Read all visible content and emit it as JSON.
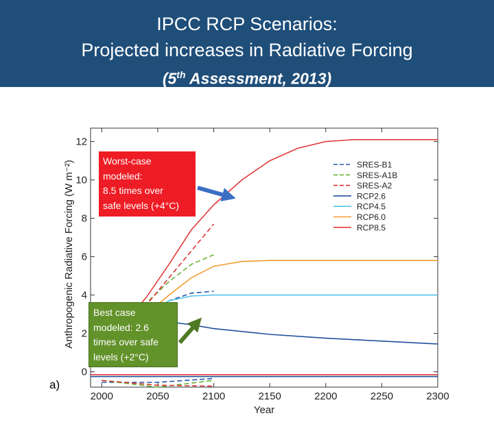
{
  "header": {
    "title_line1": "IPCC RCP Scenarios:",
    "title_line2": "Projected increases in Radiative Forcing",
    "subtitle_prefix": "(5",
    "subtitle_sup": "th",
    "subtitle_suffix": " Assessment, 2013)"
  },
  "callouts": {
    "worst_line1": "Worst-case",
    "worst_line2": "modeled:",
    "worst_line3": "8.5 times over",
    "worst_line4": "safe levels (+4°C)",
    "best_line1": "Best case",
    "best_line2": "modeled: 2.6",
    "best_line3": "times over safe",
    "best_line4": "levels (+2°C)"
  },
  "panel_label": "a)",
  "colors": {
    "banner": "#1f4e79",
    "worst_callout": "#ee1c24",
    "best_callout": "#62922a",
    "arrow_blue": "#3a6fc4",
    "arrow_green": "#4f7a23"
  },
  "chart_data": {
    "type": "line",
    "xlabel": "Year",
    "ylabel": "Anthropogenic Radiative Forcing (W m⁻²)",
    "xlim": [
      1990,
      2300
    ],
    "ylim": [
      -0.8,
      12.7
    ],
    "xticks": [
      "2000",
      "2050",
      "2100",
      "2150",
      "2200",
      "2250",
      "2300"
    ],
    "yticks": [
      "0",
      "2",
      "4",
      "6",
      "8",
      "10",
      "12"
    ],
    "legend_position": "top-right",
    "series": [
      {
        "name": "SRES-B1",
        "color": "#2255aa",
        "dash": true,
        "x": [
          2000,
          2020,
          2040,
          2060,
          2080,
          2100
        ],
        "y": [
          1.8,
          2.4,
          3.1,
          3.7,
          4.1,
          4.2
        ],
        "x2": [
          2000,
          2050,
          2100
        ],
        "y2": [
          -0.55,
          -0.55,
          -0.35
        ]
      },
      {
        "name": "SRES-A1B",
        "color": "#66b033",
        "dash": true,
        "x": [
          2000,
          2020,
          2040,
          2060,
          2080,
          2100
        ],
        "y": [
          1.8,
          2.5,
          3.6,
          4.7,
          5.6,
          6.1
        ],
        "x2": [
          2000,
          2050,
          2100
        ],
        "y2": [
          -0.45,
          -0.8,
          -0.45
        ]
      },
      {
        "name": "SRES-A2",
        "color": "#dd3333",
        "dash": true,
        "x": [
          2000,
          2020,
          2040,
          2060,
          2080,
          2100
        ],
        "y": [
          1.8,
          2.4,
          3.5,
          4.9,
          6.3,
          7.7
        ],
        "x2": [
          2000,
          2050,
          2100
        ],
        "y2": [
          -0.45,
          -0.7,
          -0.75
        ]
      },
      {
        "name": "RCP2.6",
        "color": "#1f4f9a",
        "dash": false,
        "x": [
          2000,
          2020,
          2040,
          2050,
          2060,
          2080,
          2100,
          2150,
          2200,
          2250,
          2300
        ],
        "y": [
          1.8,
          2.4,
          2.8,
          2.7,
          2.6,
          2.45,
          2.25,
          1.95,
          1.75,
          1.6,
          1.45
        ],
        "x2": [
          1990,
          2300
        ],
        "y2": [
          -0.25,
          -0.25
        ]
      },
      {
        "name": "RCP4.5",
        "color": "#55c2e8",
        "dash": false,
        "x": [
          2000,
          2020,
          2040,
          2060,
          2080,
          2100,
          2150,
          2200,
          2300
        ],
        "y": [
          1.8,
          2.4,
          3.1,
          3.7,
          3.95,
          4.0,
          4.0,
          4.0,
          4.0
        ]
      },
      {
        "name": "RCP6.0",
        "color": "#f29a2e",
        "dash": false,
        "x": [
          2000,
          2020,
          2040,
          2060,
          2080,
          2100,
          2125,
          2150,
          2200,
          2300
        ],
        "y": [
          1.8,
          2.2,
          3.0,
          4.0,
          4.9,
          5.5,
          5.75,
          5.8,
          5.8,
          5.8
        ]
      },
      {
        "name": "RCP8.5",
        "color": "#e23a3a",
        "dash": false,
        "x": [
          2000,
          2020,
          2040,
          2060,
          2080,
          2100,
          2125,
          2150,
          2175,
          2200,
          2225,
          2250,
          2300
        ],
        "y": [
          1.8,
          2.5,
          3.9,
          5.6,
          7.4,
          8.7,
          10.0,
          11.0,
          11.65,
          12.0,
          12.1,
          12.1,
          12.1
        ],
        "x2": [
          1990,
          2300
        ],
        "y2": [
          -0.15,
          -0.15
        ]
      }
    ]
  }
}
